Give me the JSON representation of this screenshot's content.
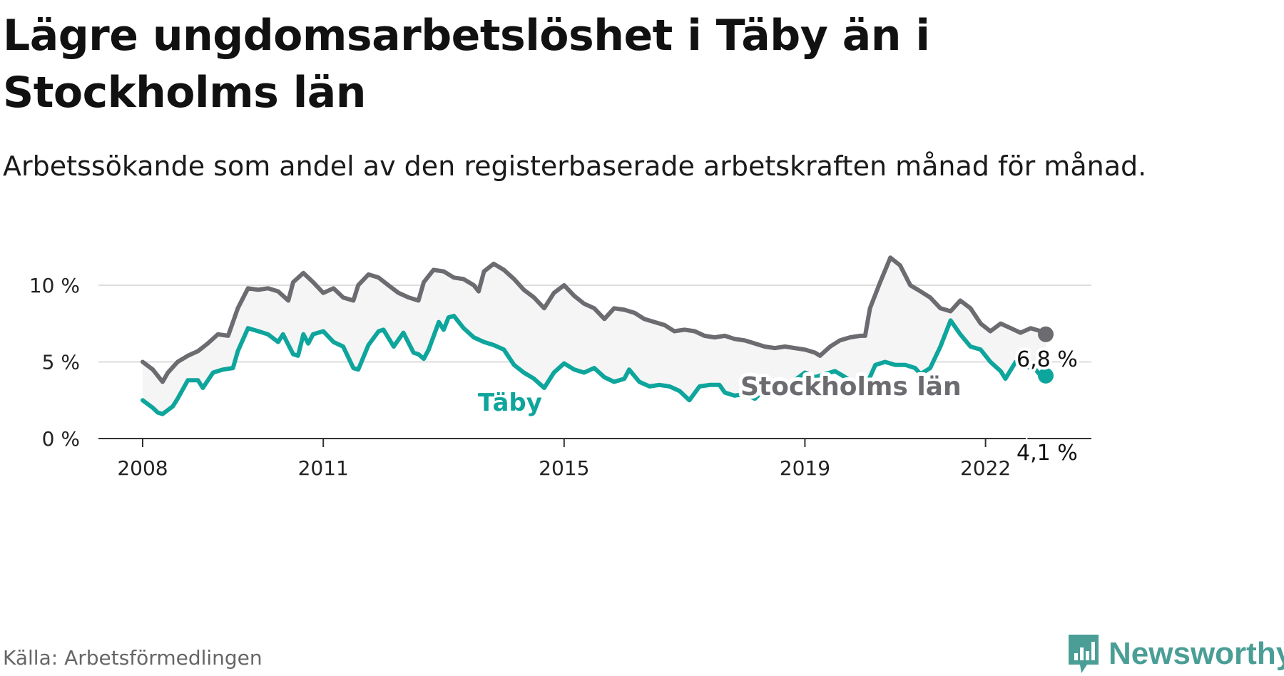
{
  "title": "Lägre ungdomsarbetslöshet i Täby än i Stockholms län",
  "subtitle": "Arbetssökande som andel av den registerbaserade arbetskraften månad för månad.",
  "source": "Källa: Arbetsförmedlingen",
  "brand": "Newsworthy",
  "colors": {
    "lan": "#6b6b70",
    "taby": "#0ea59c",
    "brand": "#4a9e96",
    "fill": "#f5f5f5",
    "grid": "#dddddd"
  },
  "chart_data": {
    "type": "line",
    "title": "Lägre ungdomsarbetslöshet i Täby än i Stockholms län",
    "xlabel": "",
    "ylabel": "",
    "ylim": [
      0,
      12
    ],
    "xlim": [
      2008,
      2023.1
    ],
    "yticks": [
      0,
      5,
      10
    ],
    "ytick_labels": [
      "0 %",
      "5 %",
      "10 %"
    ],
    "xticks": [
      2008,
      2011,
      2015,
      2019,
      2022
    ],
    "xtick_labels": [
      "2008",
      "2011",
      "2015",
      "2019",
      "2022"
    ],
    "grid": true,
    "series": [
      {
        "name": "Stockholms län",
        "label": "Stockholms län",
        "end_label": "6,8 %",
        "points": [
          [
            2008.0,
            5.0
          ],
          [
            2008.17,
            4.5
          ],
          [
            2008.33,
            3.7
          ],
          [
            2008.42,
            4.3
          ],
          [
            2008.58,
            5.0
          ],
          [
            2008.75,
            5.4
          ],
          [
            2008.92,
            5.7
          ],
          [
            2009.08,
            6.2
          ],
          [
            2009.25,
            6.8
          ],
          [
            2009.42,
            6.7
          ],
          [
            2009.58,
            8.5
          ],
          [
            2009.75,
            9.8
          ],
          [
            2009.92,
            9.7
          ],
          [
            2010.08,
            9.8
          ],
          [
            2010.25,
            9.6
          ],
          [
            2010.42,
            9.0
          ],
          [
            2010.5,
            10.2
          ],
          [
            2010.67,
            10.8
          ],
          [
            2010.83,
            10.2
          ],
          [
            2011.0,
            9.5
          ],
          [
            2011.17,
            9.8
          ],
          [
            2011.33,
            9.2
          ],
          [
            2011.5,
            9.0
          ],
          [
            2011.58,
            10.0
          ],
          [
            2011.75,
            10.7
          ],
          [
            2011.92,
            10.5
          ],
          [
            2012.08,
            10.0
          ],
          [
            2012.25,
            9.5
          ],
          [
            2012.42,
            9.2
          ],
          [
            2012.58,
            9.0
          ],
          [
            2012.67,
            10.2
          ],
          [
            2012.83,
            11.0
          ],
          [
            2013.0,
            10.9
          ],
          [
            2013.17,
            10.5
          ],
          [
            2013.33,
            10.4
          ],
          [
            2013.5,
            10.0
          ],
          [
            2013.58,
            9.6
          ],
          [
            2013.67,
            10.9
          ],
          [
            2013.83,
            11.4
          ],
          [
            2014.0,
            11.0
          ],
          [
            2014.17,
            10.4
          ],
          [
            2014.33,
            9.7
          ],
          [
            2014.5,
            9.2
          ],
          [
            2014.67,
            8.5
          ],
          [
            2014.83,
            9.5
          ],
          [
            2015.0,
            10.0
          ],
          [
            2015.17,
            9.3
          ],
          [
            2015.33,
            8.8
          ],
          [
            2015.5,
            8.5
          ],
          [
            2015.67,
            7.8
          ],
          [
            2015.83,
            8.5
          ],
          [
            2016.0,
            8.4
          ],
          [
            2016.17,
            8.2
          ],
          [
            2016.33,
            7.8
          ],
          [
            2016.5,
            7.6
          ],
          [
            2016.67,
            7.4
          ],
          [
            2016.83,
            7.0
          ],
          [
            2017.0,
            7.1
          ],
          [
            2017.17,
            7.0
          ],
          [
            2017.33,
            6.7
          ],
          [
            2017.5,
            6.6
          ],
          [
            2017.67,
            6.7
          ],
          [
            2017.83,
            6.5
          ],
          [
            2018.0,
            6.4
          ],
          [
            2018.17,
            6.2
          ],
          [
            2018.33,
            6.0
          ],
          [
            2018.5,
            5.9
          ],
          [
            2018.67,
            6.0
          ],
          [
            2018.83,
            5.9
          ],
          [
            2019.0,
            5.8
          ],
          [
            2019.17,
            5.6
          ],
          [
            2019.25,
            5.4
          ],
          [
            2019.42,
            6.0
          ],
          [
            2019.58,
            6.4
          ],
          [
            2019.75,
            6.6
          ],
          [
            2019.92,
            6.7
          ],
          [
            2020.0,
            6.7
          ],
          [
            2020.08,
            8.5
          ],
          [
            2020.25,
            10.2
          ],
          [
            2020.42,
            11.8
          ],
          [
            2020.58,
            11.3
          ],
          [
            2020.75,
            10.0
          ],
          [
            2020.92,
            9.6
          ],
          [
            2021.08,
            9.2
          ],
          [
            2021.25,
            8.5
          ],
          [
            2021.42,
            8.3
          ],
          [
            2021.58,
            9.0
          ],
          [
            2021.75,
            8.5
          ],
          [
            2021.92,
            7.5
          ],
          [
            2022.08,
            7.0
          ],
          [
            2022.25,
            7.5
          ],
          [
            2022.42,
            7.2
          ],
          [
            2022.58,
            6.9
          ],
          [
            2022.75,
            7.2
          ],
          [
            2022.92,
            7.0
          ],
          [
            2023.0,
            6.8
          ]
        ]
      },
      {
        "name": "Täby",
        "label": "Täby",
        "end_label": "4,1 %",
        "points": [
          [
            2008.0,
            2.5
          ],
          [
            2008.17,
            2.0
          ],
          [
            2008.25,
            1.7
          ],
          [
            2008.33,
            1.6
          ],
          [
            2008.5,
            2.1
          ],
          [
            2008.58,
            2.6
          ],
          [
            2008.75,
            3.8
          ],
          [
            2008.92,
            3.8
          ],
          [
            2009.0,
            3.3
          ],
          [
            2009.17,
            4.3
          ],
          [
            2009.33,
            4.5
          ],
          [
            2009.5,
            4.6
          ],
          [
            2009.58,
            5.7
          ],
          [
            2009.75,
            7.2
          ],
          [
            2009.92,
            7.0
          ],
          [
            2010.08,
            6.8
          ],
          [
            2010.25,
            6.3
          ],
          [
            2010.33,
            6.8
          ],
          [
            2010.5,
            5.5
          ],
          [
            2010.58,
            5.4
          ],
          [
            2010.67,
            6.8
          ],
          [
            2010.75,
            6.2
          ],
          [
            2010.83,
            6.8
          ],
          [
            2011.0,
            7.0
          ],
          [
            2011.17,
            6.3
          ],
          [
            2011.33,
            6.0
          ],
          [
            2011.5,
            4.6
          ],
          [
            2011.58,
            4.5
          ],
          [
            2011.75,
            6.1
          ],
          [
            2011.92,
            7.0
          ],
          [
            2012.0,
            7.1
          ],
          [
            2012.17,
            6.0
          ],
          [
            2012.33,
            6.9
          ],
          [
            2012.5,
            5.6
          ],
          [
            2012.58,
            5.5
          ],
          [
            2012.67,
            5.2
          ],
          [
            2012.75,
            5.8
          ],
          [
            2012.92,
            7.6
          ],
          [
            2013.0,
            7.1
          ],
          [
            2013.08,
            7.9
          ],
          [
            2013.17,
            8.0
          ],
          [
            2013.33,
            7.2
          ],
          [
            2013.5,
            6.6
          ],
          [
            2013.67,
            6.3
          ],
          [
            2013.83,
            6.1
          ],
          [
            2014.0,
            5.8
          ],
          [
            2014.17,
            4.8
          ],
          [
            2014.33,
            4.3
          ],
          [
            2014.5,
            3.9
          ],
          [
            2014.67,
            3.3
          ],
          [
            2014.83,
            4.3
          ],
          [
            2015.0,
            4.9
          ],
          [
            2015.17,
            4.5
          ],
          [
            2015.33,
            4.3
          ],
          [
            2015.5,
            4.6
          ],
          [
            2015.67,
            4.0
          ],
          [
            2015.83,
            3.7
          ],
          [
            2016.0,
            3.9
          ],
          [
            2016.08,
            4.5
          ],
          [
            2016.25,
            3.7
          ],
          [
            2016.42,
            3.4
          ],
          [
            2016.58,
            3.5
          ],
          [
            2016.75,
            3.4
          ],
          [
            2016.92,
            3.1
          ],
          [
            2017.08,
            2.5
          ],
          [
            2017.25,
            3.4
          ],
          [
            2017.42,
            3.5
          ],
          [
            2017.58,
            3.5
          ],
          [
            2017.67,
            3.0
          ],
          [
            2017.83,
            2.8
          ],
          [
            2018.0,
            2.9
          ],
          [
            2018.17,
            2.6
          ],
          [
            2018.33,
            3.2
          ],
          [
            2018.5,
            3.6
          ],
          [
            2018.67,
            3.4
          ],
          [
            2018.83,
            3.8
          ],
          [
            2019.0,
            4.3
          ],
          [
            2019.17,
            4.0
          ],
          [
            2019.33,
            4.2
          ],
          [
            2019.5,
            4.4
          ],
          [
            2019.67,
            4.0
          ],
          [
            2019.83,
            3.6
          ],
          [
            2020.0,
            3.3
          ],
          [
            2020.17,
            4.8
          ],
          [
            2020.33,
            5.0
          ],
          [
            2020.5,
            4.8
          ],
          [
            2020.67,
            4.8
          ],
          [
            2020.83,
            4.6
          ],
          [
            2020.92,
            4.2
          ],
          [
            2021.08,
            4.6
          ],
          [
            2021.25,
            6.0
          ],
          [
            2021.42,
            7.7
          ],
          [
            2021.58,
            6.8
          ],
          [
            2021.75,
            6.0
          ],
          [
            2021.92,
            5.8
          ],
          [
            2022.08,
            5.0
          ],
          [
            2022.25,
            4.4
          ],
          [
            2022.33,
            3.9
          ],
          [
            2022.5,
            5.0
          ],
          [
            2022.67,
            4.7
          ],
          [
            2022.83,
            4.5
          ],
          [
            2022.92,
            4.1
          ],
          [
            2023.0,
            4.1
          ]
        ]
      }
    ]
  }
}
